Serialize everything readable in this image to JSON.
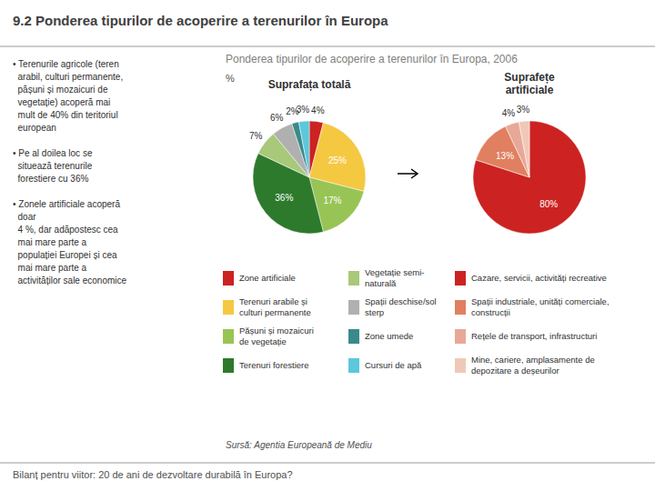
{
  "title": "9.2 Ponderea tipurilor de acoperire a terenurilor în Europa",
  "subtitle": "Ponderea tipurilor de acoperire a terenurilor în Europa, 2006",
  "annotations": [
    "• Terenurile agricole (teren\n  arabil, culturi permanente,\n  pășuni și mozaicuri de\n  vegetație) acoperă mai\n  mult de 40% din teritoriul\n  european\n\n• Pe al doilea loc se\n  situează terenurile\n  forestiere cu 36%\n\n• Zonele artificiale acoperă\n  doar\n  4 %, dar adăpostesc cea\n  mai mare parte a\n  populației Europei și cea\n  mai mare parte a\n  activităților sale economice",
    "%",
    "Sursă: Agentia Europeană de Mediu",
    "Bilanț pentru viitor: 20 de ani de dezvoltare durabilă în Europa?"
  ],
  "chart_data": [
    {
      "type": "pie",
      "title": "Suprafața totală",
      "categories": [
        "Zone artificiale",
        "Terenuri arabile și\nculturi permanente",
        "Pășuni și mozaicuri\nde vegetație",
        "Terenuri forestiere",
        "Vegetație semi-\nnaturală",
        "Spații deschise/sol\nsterp",
        "Zone umede",
        "Cursuri de apă"
      ],
      "values": [
        4,
        25,
        17,
        36,
        7,
        6,
        2,
        3
      ],
      "value_labels": [
        "4%",
        "25%",
        "17%",
        "36%",
        "7%",
        "6%",
        "2%",
        "3%"
      ],
      "colors": [
        "#cc2222",
        "#f5c842",
        "#98c455",
        "#2d7a2d",
        "#a8c87a",
        "#b0b0b0",
        "#3a8a8a",
        "#5bc8dc"
      ],
      "data_labels": true,
      "legend": "bottom"
    },
    {
      "type": "pie",
      "title": "Suprafețe\nartificiale",
      "categories": [
        "Cazare, servicii, activități recreative",
        "Spații industriale, unități comerciale,\nconstrucții",
        "Rețele de transport, infrastructuri",
        "Mine, cariere, amplasamente de\ndepozitare a deșeurilor"
      ],
      "values": [
        80,
        13,
        4,
        3
      ],
      "value_labels": [
        "80%",
        "13%",
        "4%",
        "3%"
      ],
      "colors": [
        "#cc2222",
        "#e08060",
        "#e8a898",
        "#f0c8b8"
      ],
      "data_labels": true,
      "legend": "bottom"
    }
  ]
}
